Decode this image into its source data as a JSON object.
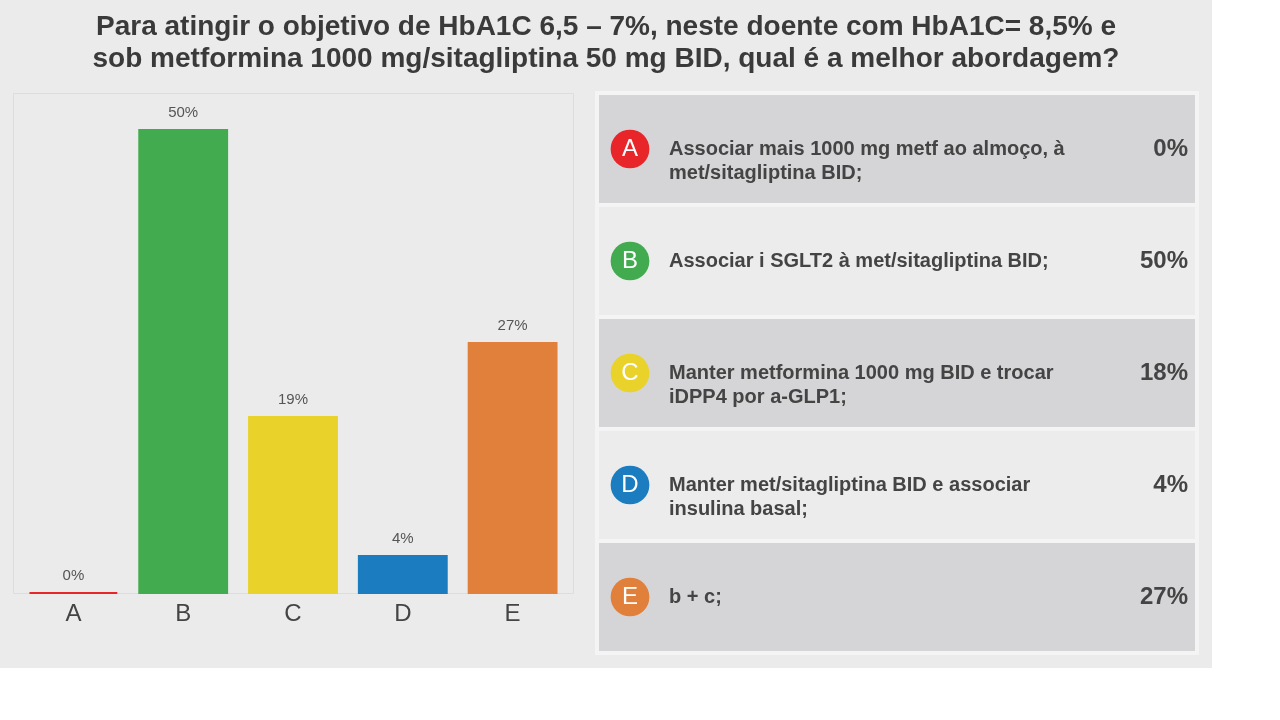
{
  "chart_data": [
    {
      "type": "bar",
      "title": "Para atingir o objetivo de HbA1C 6,5 – 7%, neste doente com HbA1C= 8,5% e sob metformina 1000 mg/sitagliptina 50 mg BID, qual é a melhor abordagem?",
      "categories": [
        "A",
        "B",
        "C",
        "D",
        "E"
      ],
      "values": [
        0,
        50,
        19,
        4,
        27
      ],
      "colors": [
        "#e8262a",
        "#43ab4f",
        "#e9d22a",
        "#1b7cc0",
        "#e0803b"
      ],
      "value_labels": [
        "0%",
        "50%",
        "19%",
        "4%",
        "27%"
      ]
    },
    {
      "type": "other",
      "colors": [
        "#e8262a",
        "#43ab4f",
        "#e9d22a",
        "#1b7cc0",
        "#e0803b"
      ],
      "annotations": [
        "A",
        "Associar mais 1000 mg metf ao almoço, à met/sitagliptina BID;",
        "0%",
        "B",
        "Associar i SGLT2 à met/sitagliptina BID;",
        "50%",
        "C",
        "Manter metformina 1000 mg BID e trocar iDPP4 por a-GLP1;",
        "18%",
        "D",
        "Manter met/sitagliptina BID e associar insulina basal;",
        "4%",
        "E",
        "b + c;",
        "27%"
      ]
    }
  ]
}
